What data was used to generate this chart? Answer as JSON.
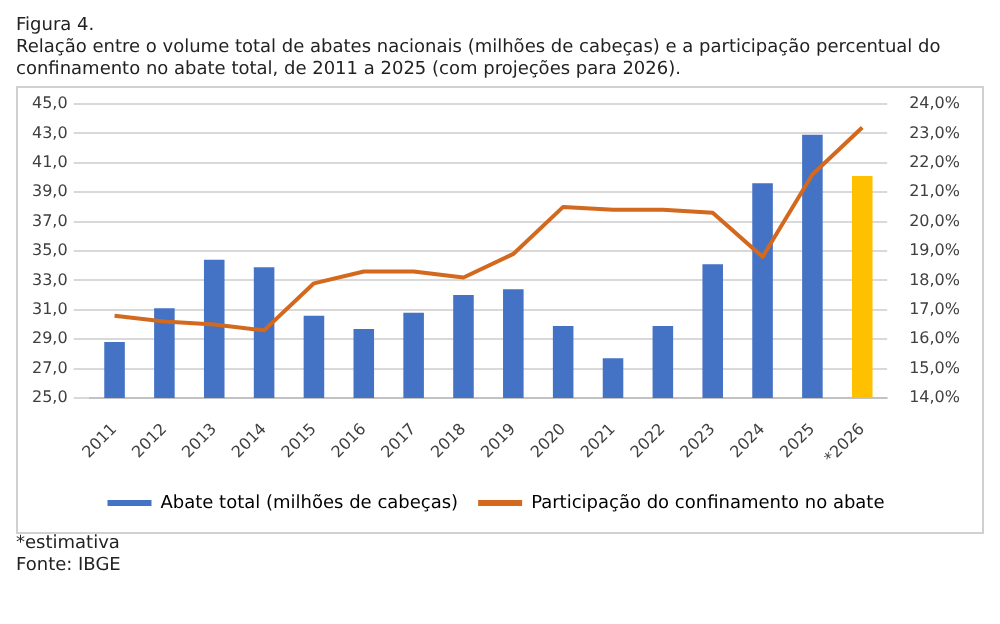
{
  "chart_data": {
    "type": "bar",
    "title": "Figura 4.",
    "subtitle": "Relação entre o volume total de abates nacionais (milhões de cabeças) e a participação percentual do confinamento no abate total, de 2011 a 2025 (com projeções para 2026).",
    "categories": [
      "2011",
      "2012",
      "2013",
      "2014",
      "2015",
      "2016",
      "2017",
      "2018",
      "2019",
      "2020",
      "2021",
      "2022",
      "2023",
      "2024",
      "2025",
      "*2026"
    ],
    "series": [
      {
        "name": "Abate total (milhões de cabeças)",
        "color": "#4472c4",
        "colors": [
          "#4472c4",
          "#4472c4",
          "#4472c4",
          "#4472c4",
          "#4472c4",
          "#4472c4",
          "#4472c4",
          "#4472c4",
          "#4472c4",
          "#4472c4",
          "#4472c4",
          "#4472c4",
          "#4472c4",
          "#4472c4",
          "#4472c4",
          "#ffc000"
        ],
        "values": [
          28.8,
          31.1,
          34.4,
          33.9,
          30.6,
          29.7,
          30.8,
          32.0,
          32.4,
          29.9,
          27.7,
          29.9,
          34.1,
          39.6,
          42.9,
          40.1
        ]
      },
      {
        "name": "Participação do confinamento no abate",
        "type": "line",
        "axis": "y2",
        "color": "#d2691e",
        "values": [
          16.8,
          16.6,
          16.5,
          16.3,
          17.9,
          18.3,
          18.3,
          18.1,
          18.9,
          20.5,
          20.4,
          20.4,
          20.3,
          18.8,
          21.6,
          23.2
        ]
      }
    ],
    "ylim": [
      25,
      45
    ],
    "yticks": [
      {
        "value": 25,
        "label": "25,0"
      },
      {
        "value": 27,
        "label": "27,0"
      },
      {
        "value": 29,
        "label": "29,0"
      },
      {
        "value": 31,
        "label": "31,0"
      },
      {
        "value": 33,
        "label": "33,0"
      },
      {
        "value": 35,
        "label": "35,0"
      },
      {
        "value": 37,
        "label": "37,0"
      },
      {
        "value": 39,
        "label": "39,0"
      },
      {
        "value": 41,
        "label": "41,0"
      },
      {
        "value": 43,
        "label": "43,0"
      },
      {
        "value": 45,
        "label": "45,0"
      }
    ],
    "y2lim": [
      14,
      24
    ],
    "y2ticks": [
      {
        "value": 14,
        "label": "14,0%"
      },
      {
        "value": 15,
        "label": "15,0%"
      },
      {
        "value": 16,
        "label": "16,0%"
      },
      {
        "value": 17,
        "label": "17,0%"
      },
      {
        "value": 18,
        "label": "18,0%"
      },
      {
        "value": 19,
        "label": "19,0%"
      },
      {
        "value": 20,
        "label": "20,0%"
      },
      {
        "value": 21,
        "label": "21,0%"
      },
      {
        "value": 22,
        "label": "22,0%"
      },
      {
        "value": 23,
        "label": "23,0%"
      },
      {
        "value": 24,
        "label": "24,0%"
      }
    ],
    "grid": "y",
    "legend": "bottom",
    "marker": "none",
    "annotations": [
      "*estimativa",
      "Fonte: IBGE"
    ]
  }
}
